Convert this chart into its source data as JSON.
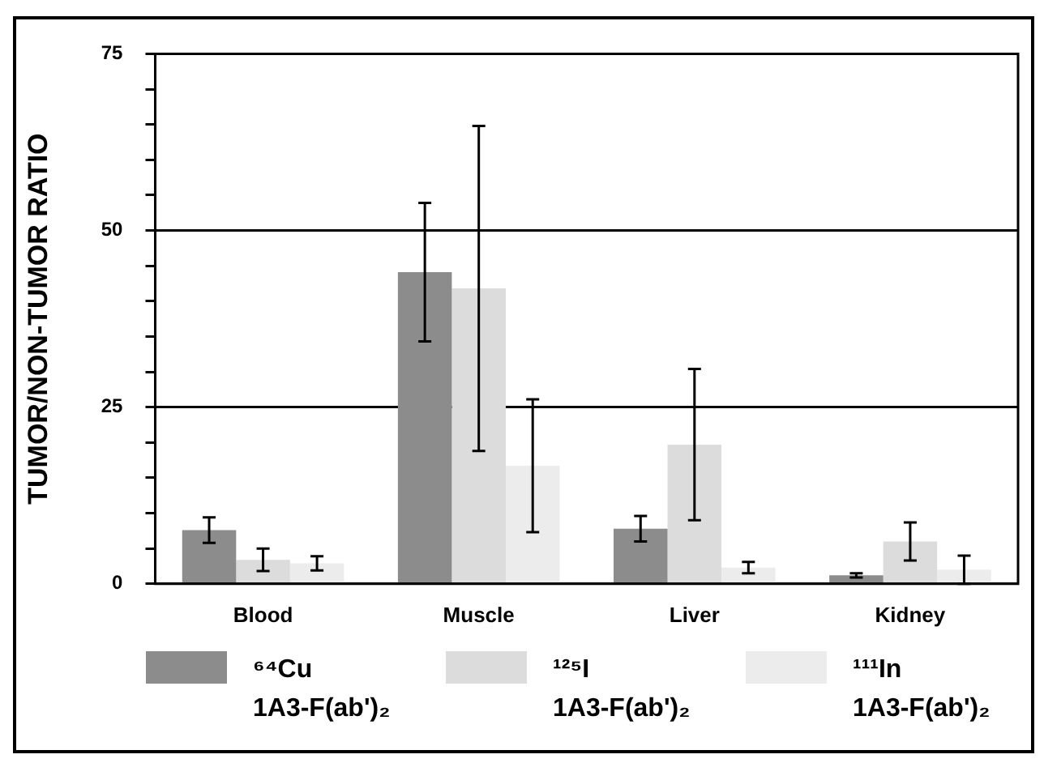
{
  "chart_data": {
    "type": "bar",
    "ylabel": "TUMOR/NON-TUMOR RATIO",
    "categories": [
      "Blood",
      "Muscle",
      "Liver",
      "Kidney"
    ],
    "series": [
      {
        "name": "⁶⁴Cu 1A3-F(ab')₂",
        "color": "#8c8c8c",
        "values": [
          7.6,
          44.1,
          7.8,
          1.2
        ],
        "errors": [
          1.8,
          9.8,
          1.8,
          0.3
        ]
      },
      {
        "name": "¹²⁵I 1A3-F(ab')₂",
        "color": "#dcdcdc",
        "values": [
          3.4,
          41.8,
          19.7,
          6.0
        ],
        "errors": [
          1.6,
          23,
          10.7,
          2.7
        ]
      },
      {
        "name": "¹¹¹In 1A3-F(ab')₂",
        "color": "#ececec",
        "values": [
          2.9,
          16.7,
          2.3,
          2.0
        ],
        "errors": [
          1,
          9.4,
          0.8,
          2.0
        ]
      }
    ],
    "ylim": [
      0,
      75
    ],
    "yticks": [
      0,
      {
        "value": 5,
        "label": null
      },
      {
        "value": 10,
        "label": null
      },
      {
        "value": 15,
        "label": null
      },
      {
        "value": 20,
        "label": null
      },
      25,
      {
        "value": 30,
        "label": null
      },
      {
        "value": 35,
        "label": null
      },
      {
        "value": 40,
        "label": null
      },
      {
        "value": 45,
        "label": null
      },
      50,
      {
        "value": 55,
        "label": null
      },
      {
        "value": 60,
        "label": null
      },
      {
        "value": 65,
        "label": null
      },
      {
        "value": 70,
        "label": null
      },
      75
    ],
    "grid": "y",
    "legend": "bottom"
  }
}
